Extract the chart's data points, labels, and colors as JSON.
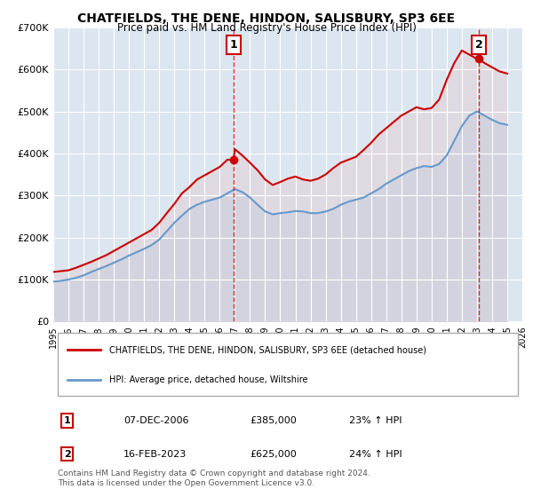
{
  "title": "CHATFIELDS, THE DENE, HINDON, SALISBURY, SP3 6EE",
  "subtitle": "Price paid vs. HM Land Registry's House Price Index (HPI)",
  "title_fontsize": 11,
  "subtitle_fontsize": 9,
  "xlim": [
    1995,
    2026
  ],
  "ylim": [
    0,
    700000
  ],
  "yticks": [
    0,
    100000,
    200000,
    300000,
    400000,
    500000,
    600000,
    700000
  ],
  "ytick_labels": [
    "£0",
    "£100K",
    "£200K",
    "£300K",
    "£400K",
    "£500K",
    "£600K",
    "£700K"
  ],
  "xticks": [
    1995,
    1996,
    1997,
    1998,
    1999,
    2000,
    2001,
    2002,
    2003,
    2004,
    2005,
    2006,
    2007,
    2008,
    2009,
    2010,
    2011,
    2012,
    2013,
    2014,
    2015,
    2016,
    2017,
    2018,
    2019,
    2020,
    2021,
    2022,
    2023,
    2024,
    2025,
    2026
  ],
  "background_color": "#ffffff",
  "plot_bg_color": "#dce6f0",
  "grid_color": "#ffffff",
  "red_line_color": "#cc0000",
  "blue_line_color": "#6699cc",
  "shade_color": "#dce6f0",
  "vline1_x": 2006.92,
  "vline2_x": 2023.12,
  "vline_color": "#cc0000",
  "point1_x": 2006.92,
  "point1_y": 385000,
  "point2_x": 2023.12,
  "point2_y": 625000,
  "legend_label1": "CHATFIELDS, THE DENE, HINDON, SALISBURY, SP3 6EE (detached house)",
  "legend_label2": "HPI: Average price, detached house, Wiltshire",
  "table_label1": "1",
  "table_date1": "07-DEC-2006",
  "table_price1": "£385,000",
  "table_hpi1": "23% ↑ HPI",
  "table_label2": "2",
  "table_date2": "16-FEB-2023",
  "table_price2": "£625,000",
  "table_hpi2": "24% ↑ HPI",
  "footnote": "Contains HM Land Registry data © Crown copyright and database right 2024.\nThis data is licensed under the Open Government Licence v3.0.",
  "hpi_x": [
    1995,
    1995.5,
    1996,
    1996.5,
    1997,
    1997.5,
    1998,
    1998.5,
    1999,
    1999.5,
    2000,
    2000.5,
    2001,
    2001.5,
    2002,
    2002.5,
    2003,
    2003.5,
    2004,
    2004.5,
    2005,
    2005.5,
    2006,
    2006.5,
    2007,
    2007.5,
    2008,
    2008.5,
    2009,
    2009.5,
    2010,
    2010.5,
    2011,
    2011.5,
    2012,
    2012.5,
    2013,
    2013.5,
    2014,
    2014.5,
    2015,
    2015.5,
    2016,
    2016.5,
    2017,
    2017.5,
    2018,
    2018.5,
    2019,
    2019.5,
    2020,
    2020.5,
    2021,
    2021.5,
    2022,
    2022.5,
    2023,
    2023.5,
    2024,
    2024.5,
    2025
  ],
  "hpi_y": [
    95000,
    97000,
    100000,
    104000,
    110000,
    118000,
    125000,
    132000,
    140000,
    148000,
    157000,
    165000,
    173000,
    182000,
    195000,
    215000,
    235000,
    252000,
    268000,
    278000,
    285000,
    290000,
    295000,
    305000,
    315000,
    308000,
    295000,
    278000,
    262000,
    255000,
    258000,
    260000,
    263000,
    262000,
    258000,
    258000,
    262000,
    268000,
    278000,
    285000,
    290000,
    295000,
    305000,
    315000,
    328000,
    338000,
    348000,
    358000,
    365000,
    370000,
    368000,
    375000,
    395000,
    430000,
    465000,
    490000,
    500000,
    490000,
    480000,
    472000,
    468000
  ],
  "red_x": [
    1995,
    1995.5,
    1996,
    1996.5,
    1997,
    1997.5,
    1998,
    1998.5,
    1999,
    1999.5,
    2000,
    2000.5,
    2001,
    2001.5,
    2002,
    2002.5,
    2003,
    2003.5,
    2004,
    2004.5,
    2005,
    2005.5,
    2006,
    2006.5,
    2006.92,
    2007,
    2007.5,
    2008,
    2008.5,
    2009,
    2009.5,
    2010,
    2010.5,
    2011,
    2011.5,
    2012,
    2012.5,
    2013,
    2013.5,
    2014,
    2014.5,
    2015,
    2015.5,
    2016,
    2016.5,
    2017,
    2017.5,
    2018,
    2018.5,
    2019,
    2019.5,
    2020,
    2020.5,
    2021,
    2021.5,
    2022,
    2022.5,
    2023,
    2023.12,
    2023.5,
    2024,
    2024.5,
    2025
  ],
  "red_y": [
    118000,
    120000,
    122000,
    128000,
    135000,
    142000,
    150000,
    158000,
    168000,
    178000,
    188000,
    198000,
    208000,
    218000,
    235000,
    258000,
    280000,
    305000,
    320000,
    338000,
    348000,
    358000,
    368000,
    385000,
    385000,
    410000,
    395000,
    378000,
    360000,
    338000,
    325000,
    332000,
    340000,
    345000,
    338000,
    335000,
    340000,
    350000,
    365000,
    378000,
    385000,
    392000,
    408000,
    425000,
    445000,
    460000,
    475000,
    490000,
    500000,
    510000,
    505000,
    508000,
    528000,
    575000,
    615000,
    645000,
    635000,
    625000,
    625000,
    615000,
    605000,
    595000,
    590000
  ]
}
